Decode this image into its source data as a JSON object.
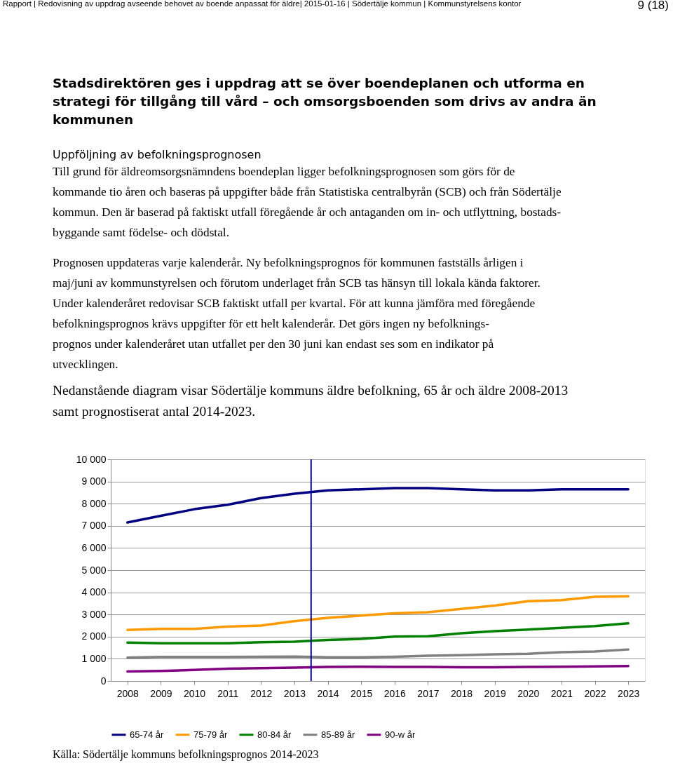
{
  "chart_data": {
    "type": "line",
    "title": "Stadsdirektören ges i uppdrag att se över boendeplanen och utforma en\nstrategi för tillgång till vård – och omsorgsboenden som drivs av andra än\nkommunen",
    "subtitle": "Uppföljning av befolkningsprognosen",
    "annotations": [
      "Rapport | Redovisning av uppdrag avseende behovet av boende anpassat för äldre| 2015-01-16 | Södertälje kommun | Kommunstyrelsens kontor",
      "9 (18)",
      "Till grund för äldreomsorgsnämndens boendeplan ligger befolkningsprognosen som görs för de\nkommande tio åren och baseras på uppgifter både från Statistiska centralbyrån (SCB) och från Södertälje\nkommun. Den är baserad på faktiskt utfall föregående år och antaganden om in- och utflyttning, bostads-\nbyggande samt födelse- och dödstal.",
      "Prognosen uppdateras varje kalenderår. Ny befolkningsprognos för kommunen fastställs årligen i\nmaj/juni av kommunstyrelsen och förutom underlaget från SCB tas hänsyn till lokala kända faktorer.\nUnder kalenderåret redovisar SCB faktiskt utfall per kvartal. För att kunna jämföra med föregående\nbefolkningsprognos krävs uppgifter för ett helt kalenderår. Det görs ingen ny befolknings-\nprognos under kalenderåret utan utfallet per den 30 juni kan endast ses som en indikator på\nutvecklingen.",
      "Nedanstående diagram visar Södertälje kommuns äldre befolkning, 65 år och äldre 2008-2013\nsamt prognostiserat antal 2014-2023.",
      "Källa: Södertälje kommuns befolkningsprognos 2014-2023"
    ],
    "x": [
      2008,
      2009,
      2010,
      2011,
      2012,
      2013,
      2014,
      2015,
      2016,
      2017,
      2018,
      2019,
      2020,
      2021,
      2022,
      2023
    ],
    "xlim": [
      2007.5,
      2023.5
    ],
    "xticks": [
      2008,
      2009,
      2010,
      2011,
      2012,
      2013,
      2014,
      2015,
      2016,
      2017,
      2018,
      2019,
      2020,
      2021,
      2022,
      2023
    ],
    "ylim": [
      0,
      10000
    ],
    "yticks": [
      {
        "value": 0,
        "label": "0"
      },
      {
        "value": 1000,
        "label": "1 000"
      },
      {
        "value": 2000,
        "label": "2 000"
      },
      {
        "value": 3000,
        "label": "3 000"
      },
      {
        "value": 4000,
        "label": "4 000"
      },
      {
        "value": 5000,
        "label": "5 000"
      },
      {
        "value": 6000,
        "label": "6 000"
      },
      {
        "value": 7000,
        "label": "7 000"
      },
      {
        "value": 8000,
        "label": "8 000"
      },
      {
        "value": 9000,
        "label": "9 000"
      },
      {
        "value": 10000,
        "label": "10 000"
      }
    ],
    "series": [
      {
        "name": "65-74 år",
        "color": "#000080",
        "values": [
          7150,
          7450,
          7750,
          7950,
          8250,
          8450,
          8600,
          8650,
          8700,
          8700,
          8650,
          8600,
          8600,
          8650,
          8650,
          8650
        ]
      },
      {
        "name": "75-79 år",
        "color": "#ff9900",
        "values": [
          2300,
          2350,
          2350,
          2450,
          2500,
          2700,
          2850,
          2950,
          3050,
          3100,
          3250,
          3400,
          3600,
          3650,
          3800,
          3820
        ]
      },
      {
        "name": "80-84 år",
        "color": "#008000",
        "values": [
          1730,
          1700,
          1700,
          1700,
          1750,
          1770,
          1850,
          1900,
          2000,
          2020,
          2150,
          2250,
          2320,
          2400,
          2480,
          2600
        ]
      },
      {
        "name": "85-89 år",
        "color": "#808080",
        "values": [
          1050,
          1080,
          1080,
          1080,
          1090,
          1100,
          1070,
          1070,
          1090,
          1140,
          1160,
          1200,
          1230,
          1300,
          1330,
          1420
        ]
      },
      {
        "name": "90-w år",
        "color": "#800080",
        "values": [
          430,
          450,
          500,
          550,
          580,
          600,
          630,
          640,
          630,
          630,
          620,
          620,
          630,
          640,
          660,
          670
        ]
      }
    ],
    "ref_lines": [
      {
        "axis": "x",
        "value": 2013.5,
        "color": "#0000a0"
      }
    ],
    "grid": "y",
    "legend": "bottom",
    "marker": "none",
    "line_style": "solid"
  }
}
